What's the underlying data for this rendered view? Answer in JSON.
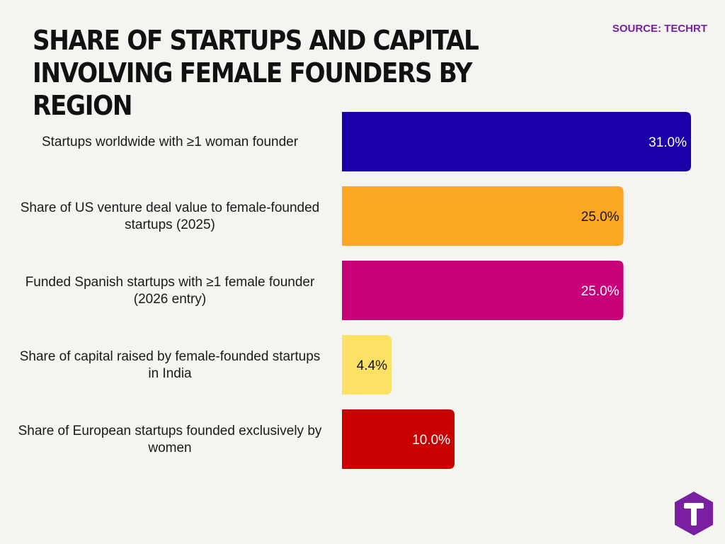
{
  "header": {
    "title": "SHARE OF STARTUPS AND CAPITAL INVOLVING FEMALE FOUNDERS BY REGION",
    "source": "SOURCE: TECHRT"
  },
  "logo": {
    "icon": "techrt-t-logo-icon",
    "letter": "T",
    "color": "#7b1fa2"
  },
  "chart_data": {
    "type": "bar",
    "orientation": "horizontal",
    "title": "SHARE OF STARTUPS AND CAPITAL INVOLVING FEMALE FOUNDERS BY REGION",
    "categories": [
      [
        "Startups worldwide with ≥1 woman founder"
      ],
      [
        "Share of US venture deal value to female-founded",
        "startups (2025)"
      ],
      [
        "Funded Spanish startups with ≥1 female founder",
        "(2026 entry)"
      ],
      [
        "Share of capital raised by female-founded startups",
        "in India"
      ],
      [
        "Share of European startups founded exclusively by",
        "women"
      ]
    ],
    "values": [
      31.0,
      25.0,
      25.0,
      4.4,
      10.0
    ],
    "value_labels": [
      "31.0%",
      "25.0%",
      "25.0%",
      "4.4%",
      "10.0%"
    ],
    "colors": [
      "#1a00a8",
      "#fca724",
      "#c8007a",
      "#fde165",
      "#c80000"
    ],
    "label_colors": [
      "#ffffff",
      "#111111",
      "#ffffff",
      "#111111",
      "#ffffff"
    ],
    "xlim": [
      0,
      31
    ],
    "unit": "%",
    "grid": false,
    "legend": "none"
  }
}
